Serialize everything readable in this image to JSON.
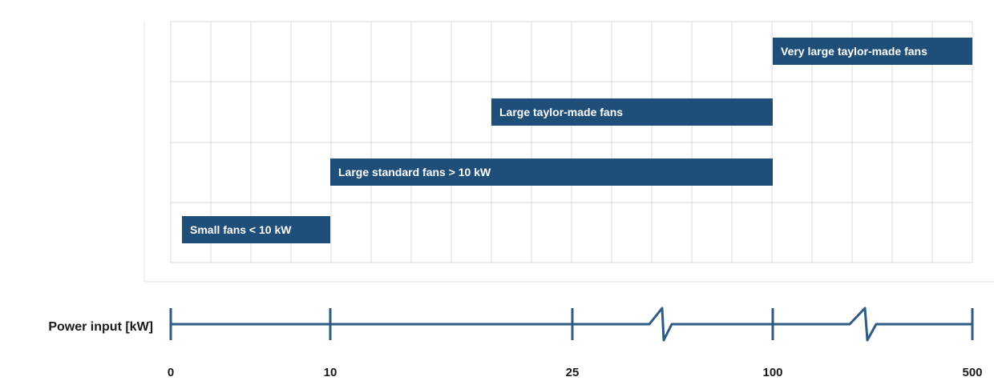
{
  "chart_data": {
    "type": "bar",
    "orientation": "horizontal-range",
    "xlabel": "Power input [kW]",
    "x_ticks": [
      "0",
      "10",
      "25",
      "100",
      "500"
    ],
    "x_scale": "broken",
    "axis_breaks": [
      "between 25 and 100",
      "between 100 and 500"
    ],
    "grid": true,
    "bars": [
      {
        "label": "Very large taylor-made fans",
        "start": 100,
        "end": 500
      },
      {
        "label": "Large taylor-made  fans",
        "start": 25,
        "end": 100
      },
      {
        "label": "Large standard  fans > 10 kW",
        "start": 10,
        "end": 100
      },
      {
        "label": "Small fans < 10 kW",
        "start": 0,
        "end": 10
      }
    ],
    "colors": {
      "bar": "#1f4e79",
      "grid": "#d9d9d9",
      "axis": "#2e5a84",
      "text": "#1a1a1a"
    }
  }
}
